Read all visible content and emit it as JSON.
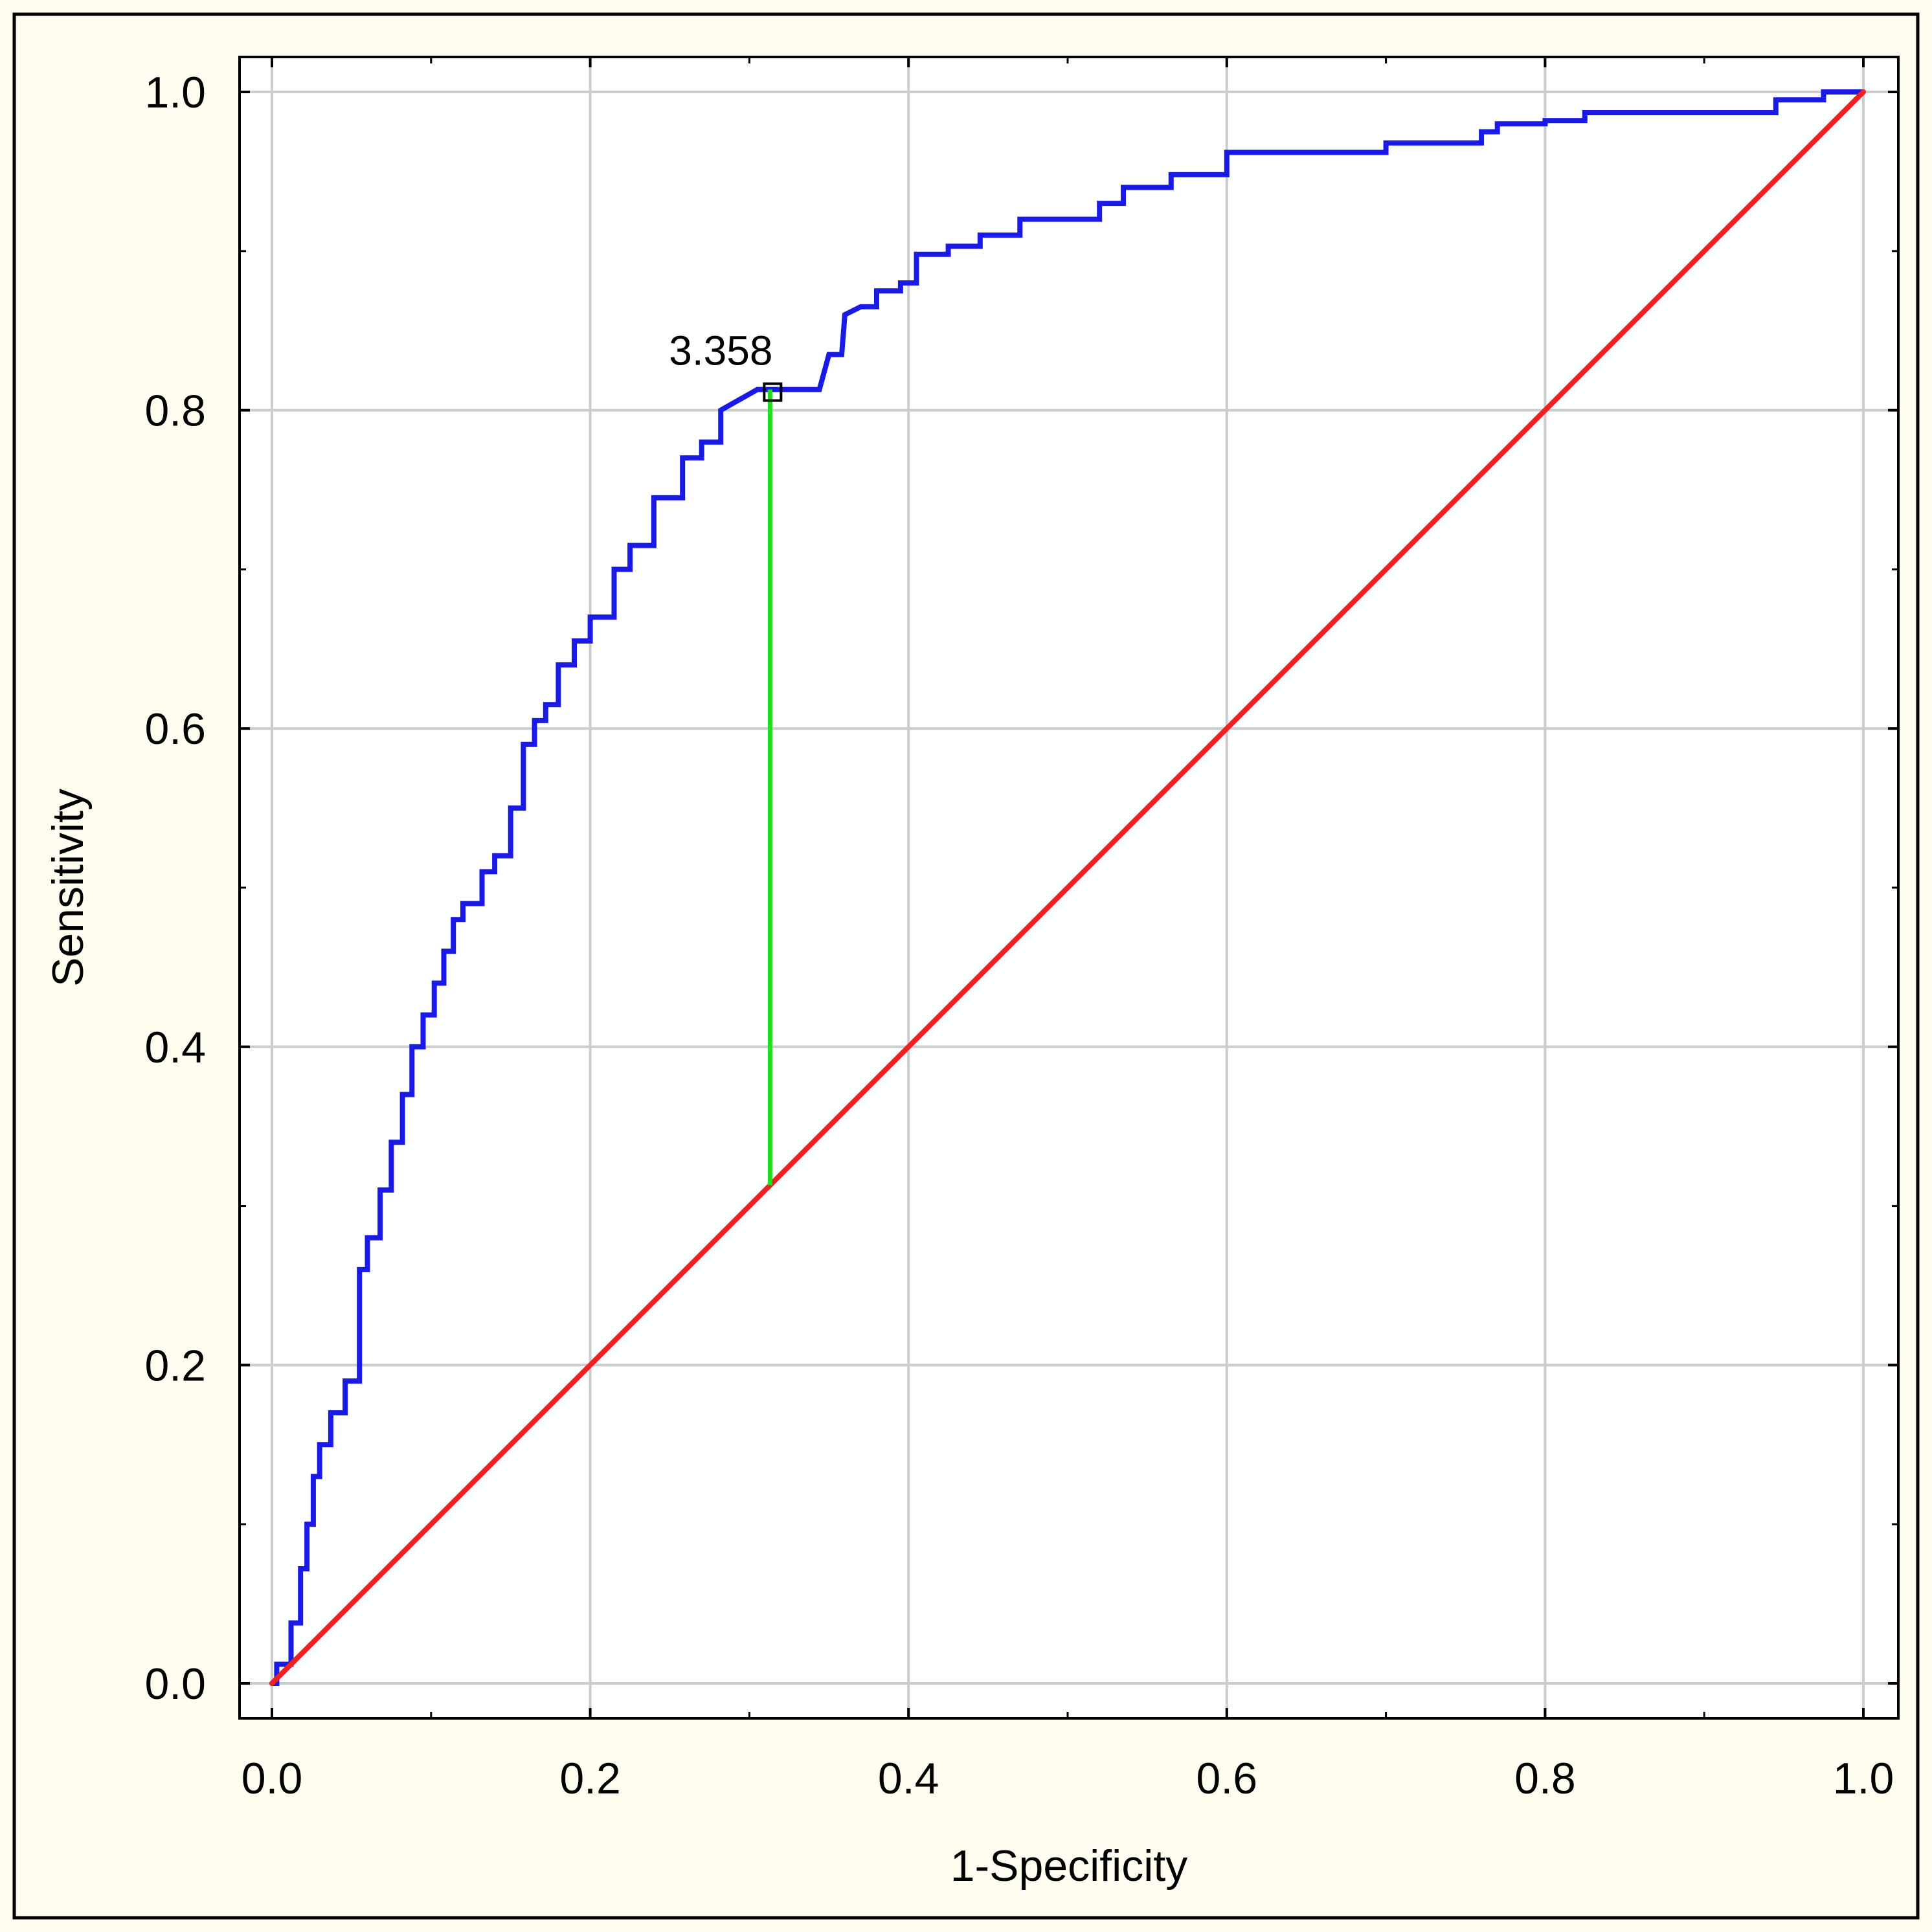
{
  "chart_data": {
    "type": "line",
    "title": "",
    "xlabel": "1-Specificity",
    "ylabel": "Sensitivity",
    "xlim": [
      0.0,
      1.0
    ],
    "ylim": [
      0.0,
      1.0
    ],
    "x_ticks": [
      "0.0",
      "0.2",
      "0.4",
      "0.6",
      "0.8",
      "1.0"
    ],
    "y_ticks": [
      "0.0",
      "0.2",
      "0.4",
      "0.6",
      "0.8",
      "1.0"
    ],
    "grid": true,
    "colors": {
      "roc_curve": "#1a1ae6",
      "reference_line": "#ee2222",
      "cutoff_line": "#22dd22",
      "grid": "#cccccc",
      "background": "#fffdf0",
      "plot_background": "#ffffff"
    },
    "series": [
      {
        "role": "roc_curve",
        "color": "#1a1ae6",
        "x": [
          0.0,
          0.003,
          0.003,
          0.012,
          0.012,
          0.018,
          0.018,
          0.022,
          0.022,
          0.026,
          0.026,
          0.03,
          0.03,
          0.037,
          0.037,
          0.046,
          0.046,
          0.055,
          0.055,
          0.06,
          0.06,
          0.068,
          0.068,
          0.075,
          0.075,
          0.082,
          0.082,
          0.088,
          0.088,
          0.095,
          0.095,
          0.102,
          0.102,
          0.108,
          0.108,
          0.114,
          0.114,
          0.12,
          0.12,
          0.132,
          0.132,
          0.14,
          0.14,
          0.15,
          0.15,
          0.158,
          0.158,
          0.165,
          0.165,
          0.172,
          0.172,
          0.18,
          0.18,
          0.19,
          0.19,
          0.2,
          0.2,
          0.215,
          0.215,
          0.225,
          0.225,
          0.24,
          0.24,
          0.258,
          0.258,
          0.27,
          0.27,
          0.282,
          0.282,
          0.305,
          0.313,
          0.313,
          0.344,
          0.35,
          0.358,
          0.36,
          0.37,
          0.38,
          0.38,
          0.395,
          0.395,
          0.405,
          0.405,
          0.425,
          0.425,
          0.445,
          0.445,
          0.47,
          0.47,
          0.52,
          0.52,
          0.535,
          0.535,
          0.565,
          0.565,
          0.6,
          0.6,
          0.7,
          0.7,
          0.76,
          0.76,
          0.77,
          0.77,
          0.8,
          0.8,
          0.825,
          0.825,
          0.945,
          0.945,
          0.975,
          0.975,
          1.0
        ],
        "y": [
          0.0,
          0.0,
          0.012,
          0.012,
          0.038,
          0.038,
          0.072,
          0.072,
          0.1,
          0.1,
          0.13,
          0.13,
          0.15,
          0.15,
          0.17,
          0.17,
          0.19,
          0.19,
          0.26,
          0.26,
          0.28,
          0.28,
          0.31,
          0.31,
          0.34,
          0.34,
          0.37,
          0.37,
          0.4,
          0.4,
          0.42,
          0.42,
          0.44,
          0.44,
          0.46,
          0.46,
          0.48,
          0.48,
          0.49,
          0.49,
          0.51,
          0.51,
          0.52,
          0.52,
          0.55,
          0.55,
          0.59,
          0.59,
          0.605,
          0.605,
          0.615,
          0.615,
          0.64,
          0.64,
          0.655,
          0.655,
          0.67,
          0.67,
          0.7,
          0.7,
          0.715,
          0.715,
          0.745,
          0.745,
          0.77,
          0.77,
          0.78,
          0.78,
          0.8,
          0.813,
          0.813,
          0.813,
          0.813,
          0.835,
          0.835,
          0.86,
          0.865,
          0.865,
          0.875,
          0.875,
          0.88,
          0.88,
          0.898,
          0.898,
          0.903,
          0.903,
          0.91,
          0.91,
          0.92,
          0.92,
          0.93,
          0.93,
          0.94,
          0.94,
          0.948,
          0.948,
          0.962,
          0.962,
          0.968,
          0.968,
          0.975,
          0.975,
          0.98,
          0.98,
          0.982,
          0.982,
          0.987,
          0.987,
          0.995,
          0.995,
          1.0,
          1.0
        ]
      },
      {
        "role": "reference_line",
        "color": "#ee2222",
        "x": [
          0.0,
          1.0
        ],
        "y": [
          0.0,
          1.0
        ]
      }
    ],
    "cutoff": {
      "label": "3.358",
      "x": 0.313,
      "y": 0.813,
      "reference_y": 0.313,
      "color": "#22dd22"
    }
  }
}
